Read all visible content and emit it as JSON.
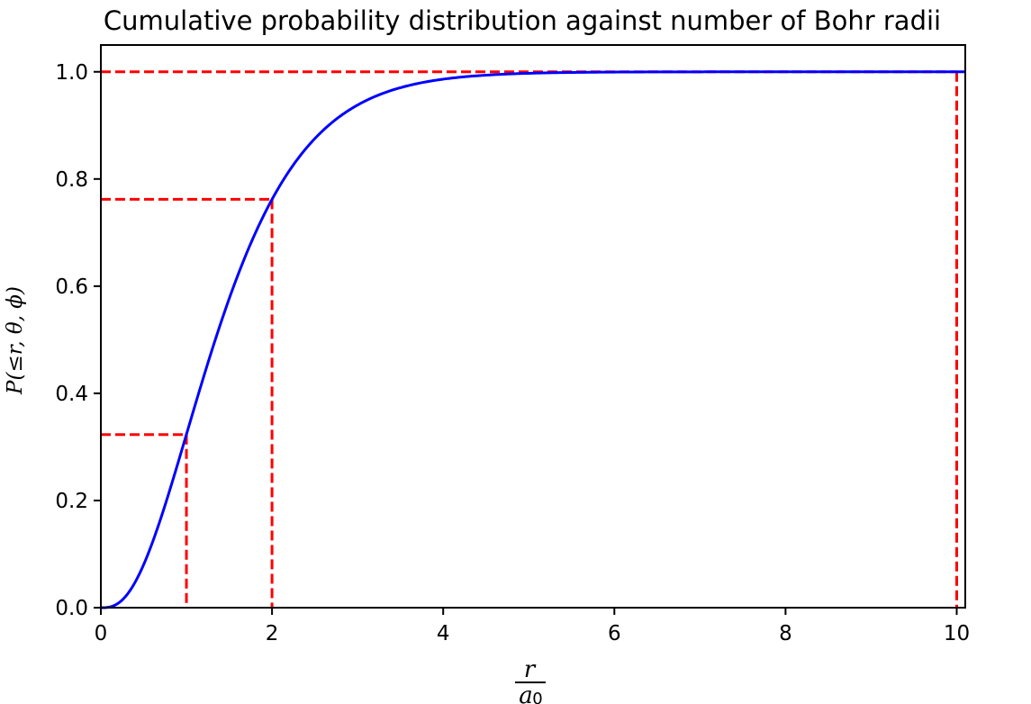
{
  "chart_data": {
    "type": "line",
    "title": "Cumulative probability distribution against number of Bohr radii",
    "xlabel_num": "r",
    "xlabel_den": "a",
    "xlabel_den_sub": "0",
    "ylabel": "P(≤r, θ, ϕ)",
    "xlim": [
      0,
      10.1
    ],
    "ylim": [
      0,
      1.05
    ],
    "x_ticks": [
      "0",
      "2",
      "4",
      "6",
      "8",
      "10"
    ],
    "y_ticks": [
      "0.0",
      "0.2",
      "0.4",
      "0.6",
      "0.8",
      "1.0"
    ],
    "grid": false,
    "legend": "none",
    "series": [
      {
        "function": "1 - exp(-2x)(1 + 2x + 2x^2)",
        "x_range": [
          0,
          10.1
        ],
        "color": "#0000ff"
      }
    ],
    "reference_lines": [
      {
        "x": 1,
        "y": 0.323,
        "color": "#ff0000",
        "style": "dashed"
      },
      {
        "x": 2,
        "y": 0.762,
        "color": "#ff0000",
        "style": "dashed"
      },
      {
        "x": 10,
        "y": 1.0,
        "color": "#ff0000",
        "style": "dashed"
      }
    ]
  }
}
